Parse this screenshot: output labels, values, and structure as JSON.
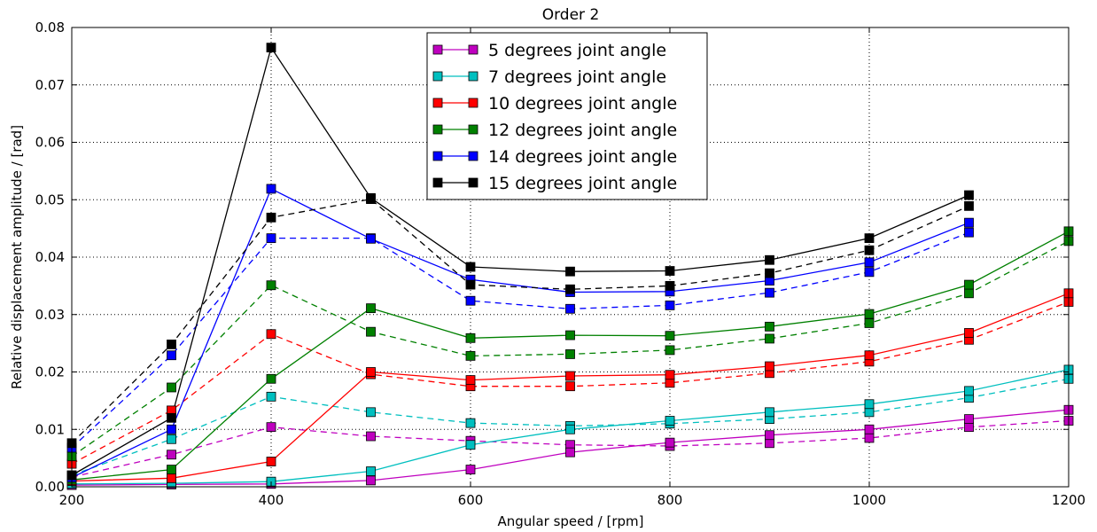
{
  "chart_data": {
    "type": "line",
    "title": "Order 2",
    "xlabel": "Angular speed / [rpm]",
    "ylabel": "Relative displacement amplitude / [rad]",
    "xlim": [
      200,
      1200
    ],
    "ylim": [
      0,
      0.08
    ],
    "xticks": [
      "200",
      "400",
      "600",
      "800",
      "1000",
      "1200"
    ],
    "yticks": [
      "0.00",
      "0.01",
      "0.02",
      "0.03",
      "0.04",
      "0.05",
      "0.06",
      "0.07",
      "0.08"
    ],
    "grid": true,
    "legend_position": "top-center",
    "x": [
      200,
      300,
      400,
      500,
      600,
      700,
      800,
      900,
      1000,
      1100,
      1200
    ],
    "series": [
      {
        "name": "5 degrees joint angle",
        "color": "#bf00bf",
        "solid": [
          0.0003,
          0.0004,
          0.0005,
          0.0011,
          0.003,
          0.006,
          0.0077,
          0.009,
          0.01,
          0.0118,
          0.0134
        ],
        "dashed": [
          0.0017,
          0.0056,
          0.0104,
          0.0088,
          0.008,
          0.0073,
          0.0071,
          0.0076,
          0.0085,
          0.0104,
          0.0115
        ]
      },
      {
        "name": "7 degrees joint angle",
        "color": "#00bfbf",
        "solid": [
          0.0005,
          0.0006,
          0.0009,
          0.0027,
          0.0073,
          0.01,
          0.0115,
          0.013,
          0.0144,
          0.0167,
          0.0204
        ],
        "dashed": [
          0.002,
          0.0083,
          0.0157,
          0.013,
          0.0111,
          0.0106,
          0.011,
          0.0118,
          0.013,
          0.0155,
          0.0188
        ]
      },
      {
        "name": "10 degrees joint angle",
        "color": "#ff0000",
        "solid": [
          0.001,
          0.0015,
          0.0044,
          0.02,
          0.0186,
          0.0193,
          0.0195,
          0.021,
          0.0229,
          0.0268,
          0.0337
        ],
        "dashed": [
          0.004,
          0.0133,
          0.0266,
          0.0196,
          0.0175,
          0.0175,
          0.0181,
          0.0198,
          0.0218,
          0.0256,
          0.0322
        ]
      },
      {
        "name": "12 degrees joint angle",
        "color": "#008000",
        "solid": [
          0.0012,
          0.003,
          0.0188,
          0.0311,
          0.0259,
          0.0264,
          0.0263,
          0.0279,
          0.0301,
          0.0352,
          0.0445
        ],
        "dashed": [
          0.0053,
          0.0173,
          0.0351,
          0.027,
          0.0228,
          0.0231,
          0.0238,
          0.0258,
          0.0285,
          0.0337,
          0.0428
        ]
      },
      {
        "name": "14 degrees joint angle",
        "color": "#0000ff",
        "solid": [
          0.0016,
          0.01,
          0.0519,
          0.0432,
          0.0361,
          0.0339,
          0.034,
          0.0359,
          0.0391,
          0.046,
          null
        ],
        "dashed": [
          0.0068,
          0.0229,
          0.0433,
          0.0433,
          0.0324,
          0.031,
          0.0316,
          0.0338,
          0.0374,
          0.0443,
          null
        ]
      },
      {
        "name": "15 degrees joint angle",
        "color": "#000000",
        "solid": [
          0.002,
          0.012,
          0.0765,
          0.0503,
          0.0383,
          0.0375,
          0.0376,
          0.0395,
          0.0433,
          0.0508,
          null
        ],
        "dashed": [
          0.0076,
          0.0248,
          0.0469,
          0.0501,
          0.0352,
          0.0344,
          0.035,
          0.0372,
          0.0412,
          0.0489,
          null
        ]
      }
    ]
  }
}
